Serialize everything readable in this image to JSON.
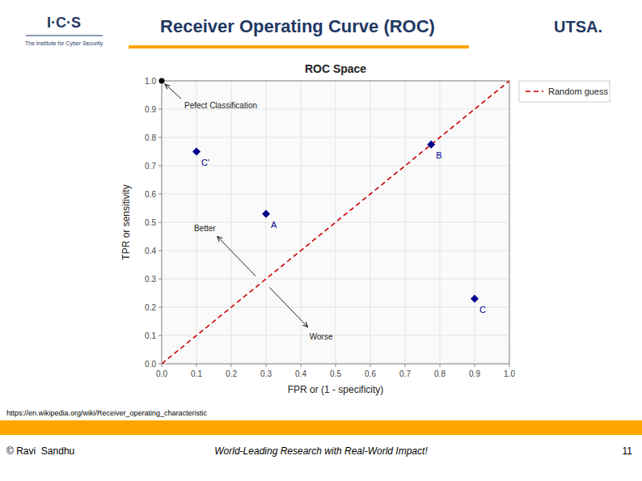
{
  "header": {
    "title": "Receiver Operating Curve (ROC)",
    "logo_left": "I·C·S",
    "logo_left_caption": "The Institute for Cyber Security",
    "logo_right": "UTSA.",
    "color": "#FFA500"
  },
  "footer": {
    "url": "https://en.wikipedia.org/wiki/Receiver_operating_characteristic",
    "left": "© Ravi  Sandhu",
    "center": "World-Leading Research with Real-World Impact!",
    "right": "11",
    "color": "#FFA500"
  },
  "chart_data": {
    "type": "scatter",
    "title": "ROC Space",
    "x_label": "FPR or (1 - specificity)",
    "y_label": "TPR or sensitivity",
    "xlim": [
      0,
      1
    ],
    "ylim": [
      0,
      1
    ],
    "xticks": [
      {
        "value": 0,
        "label": "0.0"
      },
      0.1,
      0.2,
      0.3,
      0.4,
      0.5,
      0.6,
      0.7,
      0.8,
      0.9,
      {
        "value": 1,
        "label": "1.0"
      }
    ],
    "yticks": [
      {
        "value": 0,
        "label": "0.0"
      },
      0.1,
      0.2,
      0.3,
      0.4,
      0.5,
      0.6,
      0.7,
      0.8,
      0.9,
      {
        "value": 1,
        "label": "1.0"
      }
    ],
    "grid": true,
    "legend": "upper right",
    "series": [
      {
        "name": "Random guess",
        "type": "line",
        "color": "#CC0000",
        "line_style": "dashed",
        "x": [
          0,
          1
        ],
        "values": [
          0,
          1
        ]
      },
      {
        "type": "scatter",
        "color": "#00008B",
        "marker": "diamond",
        "x": [
          0.1,
          0.3,
          0.775,
          0.9
        ],
        "values": [
          0.75,
          0.53,
          0.775,
          0.23
        ],
        "labels": [
          "C'",
          "A",
          "B",
          "C"
        ]
      }
    ],
    "annotations": [
      {
        "text": "Pefect Classification",
        "x": 0,
        "y": 1
      },
      {
        "text": "Better"
      },
      {
        "text": "Worse"
      }
    ]
  }
}
